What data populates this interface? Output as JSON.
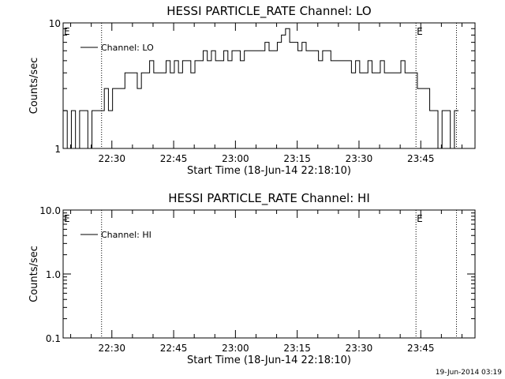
{
  "footer_timestamp": "19-Jun-2014 03:19",
  "chart_data": [
    {
      "type": "line",
      "title": "HESSI PARTICLE_RATE Channel: LO",
      "xlabel": "Start Time (18-Jun-14 22:18:10)",
      "ylabel": "Counts/sec",
      "yscale": "log",
      "ylim": [
        1,
        10
      ],
      "y_ticks": [
        1,
        10
      ],
      "y_tick_labels": [
        "1",
        "10"
      ],
      "xlim": [
        "22:18:10",
        "23:58:10"
      ],
      "x_ticks": [
        "22:30",
        "22:45",
        "23:00",
        "23:15",
        "23:30",
        "23:45"
      ],
      "legend": {
        "position": "top-left",
        "entries": [
          "Channel: LO"
        ]
      },
      "event_lines": [
        "22:27:30",
        "23:43:50",
        "23:53:40"
      ],
      "event_markers": [
        {
          "label": "E",
          "x": "22:18:10"
        },
        {
          "label": "E",
          "x": "23:43:50"
        }
      ],
      "series": [
        {
          "name": "Channel: LO",
          "x": [
            "22:18:10",
            "22:19:10",
            "22:20:10",
            "22:21:10",
            "22:22:10",
            "22:23:10",
            "22:24:10",
            "22:25:10",
            "22:26:10",
            "22:27:10",
            "22:28:10",
            "22:29:10",
            "22:30:10",
            "22:31:10",
            "22:32:10",
            "22:33:10",
            "22:34:10",
            "22:35:10",
            "22:36:10",
            "22:37:10",
            "22:38:10",
            "22:39:10",
            "22:40:10",
            "22:41:10",
            "22:42:10",
            "22:43:10",
            "22:44:10",
            "22:45:10",
            "22:46:10",
            "22:47:10",
            "22:48:10",
            "22:49:10",
            "22:50:10",
            "22:51:10",
            "22:52:10",
            "22:53:10",
            "22:54:10",
            "22:55:10",
            "22:56:10",
            "22:57:10",
            "22:58:10",
            "22:59:10",
            "23:00:10",
            "23:01:10",
            "23:02:10",
            "23:03:10",
            "23:04:10",
            "23:05:10",
            "23:06:10",
            "23:07:10",
            "23:08:10",
            "23:09:10",
            "23:10:10",
            "23:11:10",
            "23:12:10",
            "23:13:10",
            "23:14:10",
            "23:15:10",
            "23:16:10",
            "23:17:10",
            "23:18:10",
            "23:19:10",
            "23:20:10",
            "23:21:10",
            "23:22:10",
            "23:23:10",
            "23:24:10",
            "23:25:10",
            "23:26:10",
            "23:27:10",
            "23:28:10",
            "23:29:10",
            "23:30:10",
            "23:31:10",
            "23:32:10",
            "23:33:10",
            "23:34:10",
            "23:35:10",
            "23:36:10",
            "23:37:10",
            "23:38:10",
            "23:39:10",
            "23:40:10",
            "23:41:10",
            "23:42:10",
            "23:43:10",
            "23:44:10",
            "23:45:10",
            "23:46:10",
            "23:47:10",
            "23:48:10",
            "23:49:10",
            "23:50:10",
            "23:51:10",
            "23:52:10",
            "23:53:10"
          ],
          "values": [
            2,
            1,
            2,
            1,
            2,
            2,
            1,
            2,
            2,
            2,
            3,
            2,
            3,
            3,
            3,
            4,
            4,
            4,
            3,
            4,
            4,
            5,
            4,
            4,
            4,
            5,
            4,
            5,
            4,
            5,
            5,
            4,
            5,
            5,
            6,
            5,
            6,
            5,
            5,
            6,
            5,
            6,
            6,
            5,
            6,
            6,
            6,
            6,
            6,
            7,
            6,
            6,
            7,
            8,
            9,
            7,
            7,
            6,
            7,
            6,
            6,
            6,
            5,
            6,
            6,
            5,
            5,
            5,
            5,
            5,
            4,
            5,
            4,
            4,
            5,
            4,
            4,
            5,
            4,
            4,
            4,
            4,
            5,
            4,
            4,
            4,
            3,
            3,
            3,
            2,
            2,
            1,
            2,
            2,
            1,
            2
          ]
        }
      ]
    },
    {
      "type": "line",
      "title": "HESSI PARTICLE_RATE Channel: HI",
      "xlabel": "Start Time (18-Jun-14 22:18:10)",
      "ylabel": "Counts/sec",
      "yscale": "log",
      "ylim": [
        0.1,
        10
      ],
      "y_ticks": [
        0.1,
        1,
        10
      ],
      "y_tick_labels": [
        "0.1",
        "1.0",
        "10.0"
      ],
      "xlim": [
        "22:18:10",
        "23:58:10"
      ],
      "x_ticks": [
        "22:30",
        "22:45",
        "23:00",
        "23:15",
        "23:30",
        "23:45"
      ],
      "legend": {
        "position": "top-left",
        "entries": [
          "Channel: HI"
        ]
      },
      "event_lines": [
        "22:27:30",
        "23:43:50",
        "23:53:40"
      ],
      "event_markers": [
        {
          "label": "E",
          "x": "22:18:10"
        },
        {
          "label": "E",
          "x": "23:43:50"
        }
      ],
      "series": [
        {
          "name": "Channel: HI",
          "x": [],
          "values": []
        }
      ]
    }
  ]
}
